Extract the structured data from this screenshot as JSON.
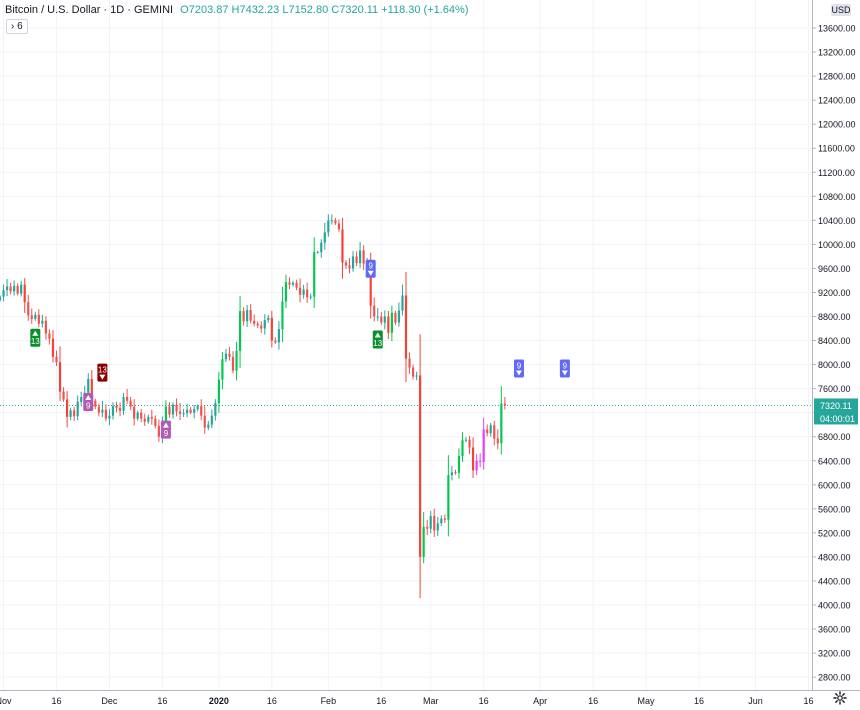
{
  "legend": {
    "symbol": "Bitcoin / U.S. Dollar · 1D · GEMINI",
    "open": "O7203.87",
    "high": "H7432.23",
    "low": "L7152.80",
    "close": "C7320.11",
    "change": "+118.30 (+1.64%)"
  },
  "indicator_count": "6",
  "currency_label": "USD",
  "price_labels": {
    "last_price": "7320.11",
    "countdown": "04:00:01"
  },
  "colors": {
    "up": "#26a69a",
    "down": "#ef5350",
    "up_bright": "#00c853",
    "down_bright": "#f44336",
    "magenta": "#e040fb",
    "grid": "#f0f3fa",
    "axis_text": "#131722",
    "price_line": "#26a69a",
    "marker_blue": "#6169f7",
    "marker_green": "#0a8f2c",
    "marker_darkred": "#8b0000",
    "marker_purple": "#b35ab6"
  },
  "chart_data": {
    "type": "candlestick",
    "title": "Bitcoin / U.S. Dollar",
    "interval": "1D",
    "exchange": "GEMINI",
    "ylim": [
      2600,
      14000
    ],
    "y_ticks": [
      2800,
      3200,
      3600,
      4000,
      4400,
      4800,
      5200,
      5600,
      6000,
      6400,
      6800,
      7200,
      7600,
      8000,
      8400,
      8800,
      9200,
      9600,
      10000,
      10400,
      10800,
      11200,
      11600,
      12000,
      12400,
      12800,
      13200,
      13600
    ],
    "y_tick_labels": [
      "2800.00",
      "3200.00",
      "3600.00",
      "4000.00",
      "4400.00",
      "4800.00",
      "5200.00",
      "5600.00",
      "6000.00",
      "6400.00",
      "6800.00",
      "7200.00",
      "7600.00",
      "8000.00",
      "8400.00",
      "8800.00",
      "9200.00",
      "9600.00",
      "10000.00",
      "10400.00",
      "10800.00",
      "11200.00",
      "11600.00",
      "12000.00",
      "12400.00",
      "12800.00",
      "13200.00",
      "13600.00"
    ],
    "x_range": [
      "2019-10-31",
      "2020-06-17"
    ],
    "x_ticks": [
      {
        "date": "2019-11-01",
        "label": "Nov"
      },
      {
        "date": "2019-11-16",
        "label": "16"
      },
      {
        "date": "2019-12-01",
        "label": "Dec"
      },
      {
        "date": "2019-12-16",
        "label": "16"
      },
      {
        "date": "2020-01-01",
        "label": "2020"
      },
      {
        "date": "2020-01-16",
        "label": "16"
      },
      {
        "date": "2020-02-01",
        "label": "Feb"
      },
      {
        "date": "2020-02-16",
        "label": "16"
      },
      {
        "date": "2020-03-01",
        "label": "Mar"
      },
      {
        "date": "2020-03-16",
        "label": "16"
      },
      {
        "date": "2020-04-01",
        "label": "Apr"
      },
      {
        "date": "2020-04-16",
        "label": "16"
      },
      {
        "date": "2020-05-01",
        "label": "May"
      },
      {
        "date": "2020-05-16",
        "label": "16"
      },
      {
        "date": "2020-06-01",
        "label": "Jun"
      },
      {
        "date": "2020-06-16",
        "label": "16"
      }
    ],
    "start_date": "2019-10-31",
    "closes": [
      9130,
      9240,
      9300,
      9220,
      9310,
      9180,
      9330,
      9040,
      8820,
      8760,
      8830,
      8680,
      8730,
      8520,
      8430,
      8130,
      8040,
      7550,
      7420,
      7130,
      7240,
      7140,
      7380,
      7460,
      7530,
      7760,
      7400,
      7300,
      7200,
      7250,
      7100,
      7150,
      7310,
      7280,
      7230,
      7460,
      7400,
      7300,
      7100,
      7200,
      7100,
      7050,
      7130,
      7100,
      6980,
      6800,
      7000,
      7300,
      7170,
      7330,
      7220,
      7180,
      7190,
      7250,
      7200,
      7260,
      7310,
      7150,
      6950,
      7000,
      7150,
      7360,
      7750,
      8090,
      8180,
      8130,
      7900,
      8230,
      8890,
      8720,
      8910,
      8730,
      8680,
      8650,
      8600,
      8740,
      8780,
      8400,
      8370,
      8590,
      9050,
      9370,
      9330,
      9360,
      9280,
      9160,
      9250,
      9120,
      9130,
      9870,
      9870,
      10030,
      10200,
      10400,
      10400,
      10350,
      10250,
      9700,
      9650,
      9600,
      9800,
      9690,
      9900,
      9680,
      9700,
      8980,
      8800,
      8800,
      8700,
      8800,
      8530,
      8860,
      8700,
      8900,
      9150,
      8100,
      7950,
      7800,
      7820,
      4800,
      5300,
      5270,
      5480,
      5240,
      5360,
      5440,
      5420,
      6160,
      6210,
      6200,
      6480,
      6740,
      6750,
      6620,
      6240,
      6400,
      6380,
      6920,
      6860,
      6990,
      6770,
      6690,
      7350,
      7320
    ],
    "markers": [
      {
        "date": "2019-11-10",
        "text": "13",
        "direction": "up",
        "color": "green"
      },
      {
        "date": "2019-11-25",
        "text": "9",
        "direction": "up",
        "color": "purple"
      },
      {
        "date": "2019-11-29",
        "text": "13",
        "direction": "down",
        "color": "darkred"
      },
      {
        "date": "2019-12-17",
        "text": "9",
        "direction": "up",
        "color": "purple"
      },
      {
        "date": "2020-02-13",
        "text": "9",
        "direction": "down",
        "color": "blue"
      },
      {
        "date": "2020-02-15",
        "text": "13",
        "direction": "up",
        "color": "green"
      },
      {
        "date": "2020-03-26",
        "text": "9",
        "direction": "down",
        "color": "blue"
      },
      {
        "date": "2020-04-08",
        "text": "9",
        "direction": "down",
        "color": "blue"
      }
    ],
    "last_price": 7320.11
  }
}
